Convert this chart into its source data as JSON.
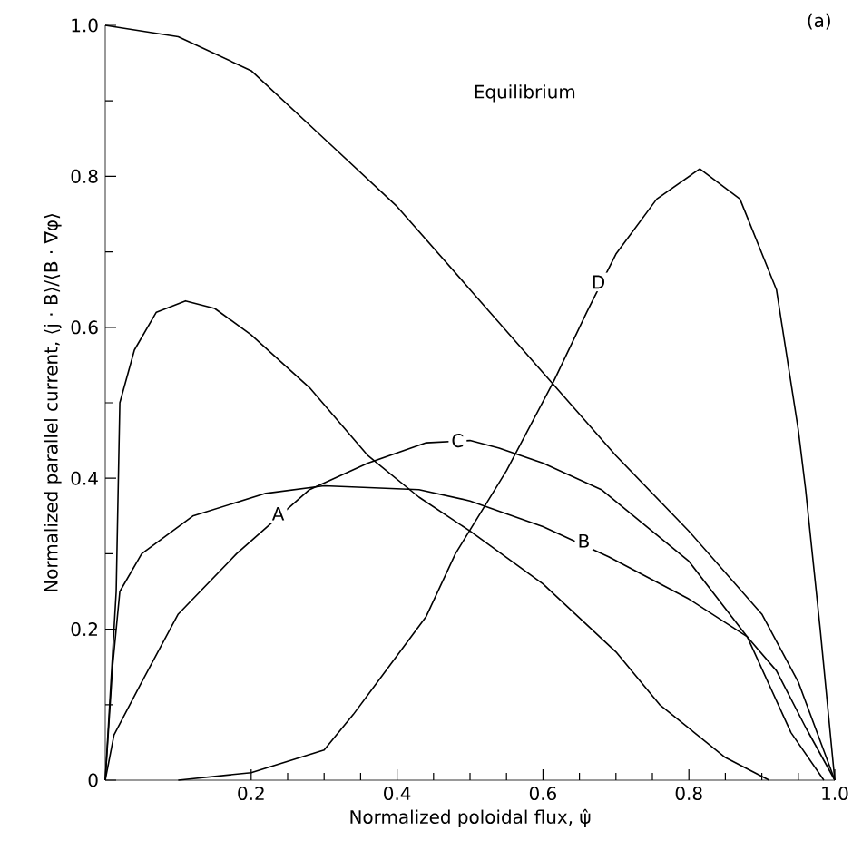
{
  "chart_data": {
    "type": "line",
    "xlabel": "Normalized poloidal flux, ψ̂",
    "ylabel": "Normalized parallel current, ⟨j · B⟩/⟨B · ∇φ⟩",
    "xlim": [
      0,
      1.0
    ],
    "ylim": [
      0,
      1.0
    ],
    "xticks": [
      0.2,
      0.4,
      0.6,
      0.8,
      {
        "value": 1.0,
        "label": "1.0"
      }
    ],
    "yticks": [
      0,
      0.2,
      0.4,
      0.6,
      0.8,
      {
        "value": 1.0,
        "label": "1.0"
      }
    ],
    "series": [
      {
        "color": "#000000",
        "x": [
          0,
          0.1,
          0.2,
          0.3,
          0.4,
          0.5,
          0.6,
          0.7,
          0.8,
          0.9,
          0.95,
          1.0
        ],
        "values": [
          1.0,
          0.985,
          0.94,
          0.85,
          0.76,
          0.65,
          0.54,
          0.43,
          0.33,
          0.22,
          0.13,
          0.0
        ]
      },
      {
        "color": "#000000",
        "x": [
          0,
          0.015,
          0.02,
          0.04,
          0.07,
          0.11,
          0.15,
          0.2,
          0.28,
          0.36,
          0.43,
          0.5,
          0.6,
          0.7,
          0.76,
          0.85,
          0.91
        ],
        "values": [
          0,
          0.25,
          0.5,
          0.57,
          0.62,
          0.635,
          0.625,
          0.59,
          0.52,
          0.43,
          0.375,
          0.33,
          0.26,
          0.17,
          0.1,
          0.03,
          0
        ]
      },
      {
        "color": "#000000",
        "x": [
          0,
          0.01,
          0.02,
          0.05,
          0.12,
          0.22,
          0.3,
          0.43,
          0.5,
          0.6,
          0.69,
          0.8,
          0.88,
          0.92,
          0.96,
          1.0
        ],
        "values": [
          0,
          0.15,
          0.25,
          0.3,
          0.35,
          0.38,
          0.39,
          0.385,
          0.37,
          0.336,
          0.296,
          0.24,
          0.19,
          0.145,
          0.07,
          0
        ]
      },
      {
        "color": "#000000",
        "x": [
          0,
          0.012,
          0.05,
          0.1,
          0.18,
          0.28,
          0.36,
          0.44,
          0.5,
          0.54,
          0.6,
          0.68,
          0.8,
          0.88,
          0.94,
          0.985
        ],
        "values": [
          0,
          0.06,
          0.13,
          0.22,
          0.3,
          0.385,
          0.42,
          0.447,
          0.45,
          0.44,
          0.42,
          0.385,
          0.29,
          0.19,
          0.063,
          0
        ]
      },
      {
        "color": "#000000",
        "x": [
          0.1,
          0.2,
          0.3,
          0.34,
          0.44,
          0.48,
          0.55,
          0.615,
          0.66,
          0.7,
          0.756,
          0.815,
          0.87,
          0.92,
          0.95,
          0.96,
          0.98,
          1.0
        ],
        "values": [
          0,
          0.01,
          0.04,
          0.087,
          0.217,
          0.3,
          0.41,
          0.529,
          0.62,
          0.697,
          0.77,
          0.81,
          0.77,
          0.65,
          0.464,
          0.385,
          0.2,
          0
        ]
      }
    ],
    "annotations": [
      "Equilibrium",
      {
        "text": "A",
        "x": 0.237,
        "y": 0.353
      },
      {
        "text": "B",
        "x": 0.656,
        "y": 0.317
      },
      {
        "text": "C",
        "x": 0.483,
        "y": 0.45
      },
      {
        "text": "D",
        "x": 0.676,
        "y": 0.66
      },
      "(a)"
    ]
  }
}
